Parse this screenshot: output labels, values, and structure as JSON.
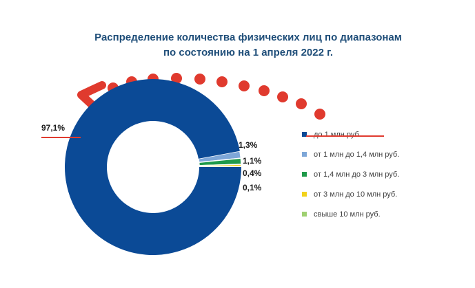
{
  "chart_data": {
    "type": "pie",
    "title": "Распределение количества физических лиц по диапазонам",
    "subtitle": "по состоянию на 1 апреля 2022 г.",
    "categories": [
      "до 1 млн руб.",
      "от 1 млн до 1,4 млн руб.",
      "от 1,4 млн до 3 млн руб.",
      "от 3 млн до 10 млн руб.",
      "свыше 10 млн руб."
    ],
    "values": [
      97.1,
      1.3,
      1.1,
      0.4,
      0.1
    ],
    "value_labels": [
      "97,1%",
      "1,3%",
      "1,1%",
      "0,4%",
      "0,1%"
    ],
    "colors": [
      "#0b4a96",
      "#7ea7d8",
      "#1f9a4a",
      "#f2d21b",
      "#9fd071"
    ],
    "legend_position": "right"
  },
  "annotation": {
    "arrow_color": "#e03a2e"
  }
}
